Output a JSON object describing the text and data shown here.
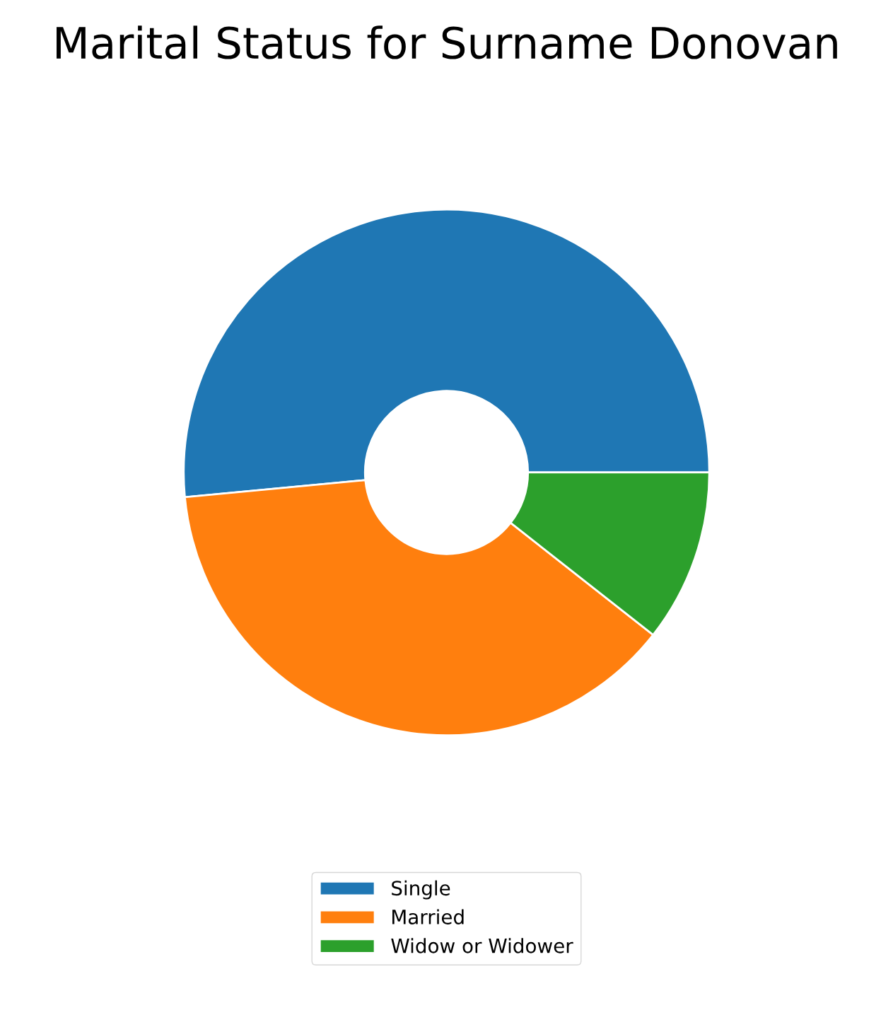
{
  "chart_data": {
    "type": "donut",
    "title": "Marital Status for Surname Donovan",
    "categories": [
      "Single",
      "Married",
      "Widow or Widower"
    ],
    "values": [
      51.5,
      37.9,
      10.6
    ],
    "colors": [
      "#1f77b4",
      "#ff7f0e",
      "#2ca02c"
    ],
    "legend": "bottom"
  }
}
